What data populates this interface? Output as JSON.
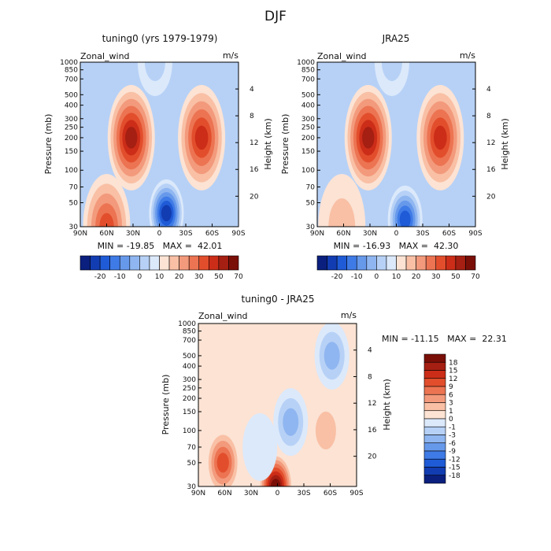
{
  "figure": {
    "season": "DJF"
  },
  "chart_data": [
    {
      "type": "heatmap",
      "title": "tuning0 (yrs 1979-1979)",
      "field_label": "Zonal_wind",
      "units": "m/s",
      "xlabel": "",
      "ylabel": "Pressure (mb)",
      "y2label": "Height (km)",
      "x_ticks": [
        "90N",
        "60N",
        "30N",
        "0",
        "30S",
        "60S",
        "90S"
      ],
      "x_range": [
        90,
        -90
      ],
      "y_ticks": [
        30,
        50,
        70,
        100,
        150,
        200,
        250,
        300,
        400,
        500,
        700,
        850,
        1000
      ],
      "y_range_mb": [
        1000,
        30
      ],
      "y2_ticks": [
        4,
        8,
        12,
        16,
        20
      ],
      "stats": "MIN = -19.85   MAX =  42.01",
      "min": -19.85,
      "max": 42.01,
      "colorbar_orientation": "horizontal",
      "colorbar_labels": [
        "-20",
        "-10",
        "0",
        "10",
        "20",
        "30",
        "50",
        "70"
      ],
      "features": [
        {
          "kind": "jet",
          "lat": 32,
          "p": 200,
          "value": 42
        },
        {
          "kind": "jet",
          "lat": -48,
          "p": 200,
          "value": 32
        },
        {
          "kind": "jet",
          "lat": 60,
          "p": 30,
          "value": 28
        },
        {
          "kind": "easterly",
          "lat": -8,
          "p": 40,
          "value": -20
        },
        {
          "kind": "easterly",
          "lat": 5,
          "p": 1000,
          "value": -5
        }
      ]
    },
    {
      "type": "heatmap",
      "title": "JRA25",
      "field_label": "Zonal_wind",
      "units": "m/s",
      "xlabel": "",
      "ylabel": "Pressure (mb)",
      "y2label": "Height (km)",
      "x_ticks": [
        "90N",
        "60N",
        "30N",
        "0",
        "30S",
        "60S",
        "90S"
      ],
      "x_range": [
        90,
        -90
      ],
      "y_ticks": [
        30,
        50,
        70,
        100,
        150,
        200,
        250,
        300,
        400,
        500,
        700,
        850,
        1000
      ],
      "y_range_mb": [
        1000,
        30
      ],
      "y2_ticks": [
        4,
        8,
        12,
        16,
        20
      ],
      "stats": "MIN = -16.93   MAX =  42.30",
      "min": -16.93,
      "max": 42.3,
      "colorbar_orientation": "horizontal",
      "colorbar_labels": [
        "-20",
        "-10",
        "0",
        "10",
        "20",
        "30",
        "50",
        "70"
      ],
      "features": [
        {
          "kind": "jet",
          "lat": 32,
          "p": 200,
          "value": 42
        },
        {
          "kind": "jet",
          "lat": -50,
          "p": 200,
          "value": 31
        },
        {
          "kind": "jet",
          "lat": 62,
          "p": 30,
          "value": 12
        },
        {
          "kind": "easterly",
          "lat": -10,
          "p": 35,
          "value": -17
        },
        {
          "kind": "easterly",
          "lat": 5,
          "p": 1000,
          "value": -5
        }
      ]
    },
    {
      "type": "heatmap",
      "title": "tuning0 - JRA25",
      "field_label": "Zonal_wind",
      "units": "m/s",
      "xlabel": "",
      "ylabel": "Pressure (mb)",
      "y2label": "Height (km)",
      "x_ticks": [
        "90N",
        "60N",
        "30N",
        "0",
        "30S",
        "60S",
        "90S"
      ],
      "x_range": [
        90,
        -90
      ],
      "y_ticks": [
        30,
        50,
        70,
        100,
        150,
        200,
        250,
        300,
        400,
        500,
        700,
        850,
        1000
      ],
      "y_range_mb": [
        1000,
        30
      ],
      "y2_ticks": [
        4,
        8,
        12,
        16,
        20
      ],
      "stats": "MIN = -11.15   MAX =  22.31",
      "min": -11.15,
      "max": 22.31,
      "colorbar_orientation": "vertical",
      "colorbar_labels": [
        "18",
        "15",
        "12",
        "9",
        "6",
        "3",
        "1",
        "0",
        "-1",
        "-3",
        "-6",
        "-9",
        "-12",
        "-15",
        "-18"
      ],
      "features": [
        {
          "kind": "positive",
          "lat": 62,
          "p": 50,
          "value": 14
        },
        {
          "kind": "positive",
          "lat": 2,
          "p": 30,
          "value": 22
        },
        {
          "kind": "positive",
          "lat": -55,
          "p": 100,
          "value": 5
        },
        {
          "kind": "negative",
          "lat": 20,
          "p": 70,
          "value": -4
        },
        {
          "kind": "negative",
          "lat": -15,
          "p": 120,
          "value": -9
        },
        {
          "kind": "negative",
          "lat": -62,
          "p": 500,
          "value": -7
        }
      ]
    }
  ],
  "colors": {
    "pos": [
      "#fce3d4",
      "#f9c0a5",
      "#f39a7c",
      "#ec7452",
      "#e24e2c",
      "#cc2d18",
      "#a51f12",
      "#7a0f08"
    ],
    "neg": [
      "#dbe9fb",
      "#b7d1f6",
      "#8fb6f0",
      "#6799eb",
      "#3f7be6",
      "#1f5bd6",
      "#123cb1",
      "#0a1f7e"
    ],
    "diff_cb": [
      "#7a0f08",
      "#a51f12",
      "#cc2d18",
      "#e24e2c",
      "#ec7452",
      "#f39a7c",
      "#f9c0a5",
      "#fce3d4",
      "#dbe9fb",
      "#b7d1f6",
      "#8fb6f0",
      "#6799eb",
      "#3f7be6",
      "#1f5bd6",
      "#123cb1",
      "#0a1f7e"
    ],
    "horiz_cb": [
      "#0a1f7e",
      "#123cb1",
      "#1f5bd6",
      "#3f7be6",
      "#6799eb",
      "#8fb6f0",
      "#b7d1f6",
      "#dbe9fb",
      "#fce3d4",
      "#f9c0a5",
      "#f39a7c",
      "#ec7452",
      "#e24e2c",
      "#cc2d18",
      "#a51f12",
      "#7a0f08"
    ]
  }
}
